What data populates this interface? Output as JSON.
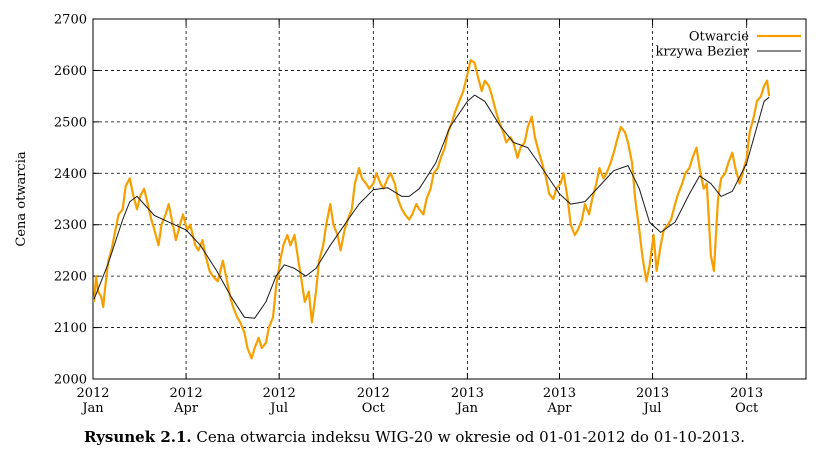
{
  "chart_data": {
    "type": "line",
    "title": "",
    "ylabel": "Cena otwarcia",
    "xlabel": "",
    "ylim": [
      2000,
      2700
    ],
    "xlim": [
      "2012-01-01",
      "2013-11-28"
    ],
    "grid": true,
    "legend_position": "top-right",
    "y_ticks": [
      2000,
      2100,
      2200,
      2300,
      2400,
      2500,
      2600,
      2700
    ],
    "x_ticks": [
      {
        "date": "2012-01-01",
        "label_top": "2012",
        "label_bottom": "Jan"
      },
      {
        "date": "2012-04-01",
        "label_top": "2012",
        "label_bottom": "Apr"
      },
      {
        "date": "2012-07-01",
        "label_top": "2012",
        "label_bottom": "Jul"
      },
      {
        "date": "2012-10-01",
        "label_top": "2012",
        "label_bottom": "Oct"
      },
      {
        "date": "2013-01-01",
        "label_top": "2013",
        "label_bottom": "Jan"
      },
      {
        "date": "2013-04-01",
        "label_top": "2013",
        "label_bottom": "Apr"
      },
      {
        "date": "2013-07-01",
        "label_top": "2013",
        "label_bottom": "Jul"
      },
      {
        "date": "2013-10-01",
        "label_top": "2013",
        "label_bottom": "Oct"
      }
    ],
    "series": [
      {
        "name": "Otwarcie",
        "color": "#f5a000",
        "points": [
          [
            "2012-01-02",
            2150
          ],
          [
            "2012-01-04",
            2200
          ],
          [
            "2012-01-06",
            2170
          ],
          [
            "2012-01-09",
            2160
          ],
          [
            "2012-01-11",
            2140
          ],
          [
            "2012-01-13",
            2180
          ],
          [
            "2012-01-16",
            2230
          ],
          [
            "2012-01-19",
            2250
          ],
          [
            "2012-01-23",
            2290
          ],
          [
            "2012-01-26",
            2320
          ],
          [
            "2012-01-30",
            2330
          ],
          [
            "2012-02-02",
            2375
          ],
          [
            "2012-02-06",
            2390
          ],
          [
            "2012-02-09",
            2360
          ],
          [
            "2012-02-13",
            2330
          ],
          [
            "2012-02-16",
            2355
          ],
          [
            "2012-02-20",
            2370
          ],
          [
            "2012-02-23",
            2345
          ],
          [
            "2012-02-27",
            2310
          ],
          [
            "2012-03-01",
            2290
          ],
          [
            "2012-03-05",
            2260
          ],
          [
            "2012-03-08",
            2300
          ],
          [
            "2012-03-12",
            2320
          ],
          [
            "2012-03-15",
            2340
          ],
          [
            "2012-03-19",
            2300
          ],
          [
            "2012-03-22",
            2270
          ],
          [
            "2012-03-26",
            2300
          ],
          [
            "2012-03-29",
            2320
          ],
          [
            "2012-04-02",
            2290
          ],
          [
            "2012-04-05",
            2300
          ],
          [
            "2012-04-10",
            2260
          ],
          [
            "2012-04-13",
            2250
          ],
          [
            "2012-04-17",
            2270
          ],
          [
            "2012-04-20",
            2240
          ],
          [
            "2012-04-24",
            2210
          ],
          [
            "2012-04-27",
            2200
          ],
          [
            "2012-05-02",
            2190
          ],
          [
            "2012-05-07",
            2230
          ],
          [
            "2012-05-10",
            2200
          ],
          [
            "2012-05-14",
            2160
          ],
          [
            "2012-05-17",
            2140
          ],
          [
            "2012-05-21",
            2120
          ],
          [
            "2012-05-24",
            2110
          ],
          [
            "2012-05-28",
            2090
          ],
          [
            "2012-05-31",
            2060
          ],
          [
            "2012-06-04",
            2040
          ],
          [
            "2012-06-07",
            2060
          ],
          [
            "2012-06-11",
            2080
          ],
          [
            "2012-06-14",
            2060
          ],
          [
            "2012-06-18",
            2070
          ],
          [
            "2012-06-21",
            2100
          ],
          [
            "2012-06-25",
            2120
          ],
          [
            "2012-06-28",
            2180
          ],
          [
            "2012-07-02",
            2230
          ],
          [
            "2012-07-05",
            2260
          ],
          [
            "2012-07-09",
            2280
          ],
          [
            "2012-07-12",
            2260
          ],
          [
            "2012-07-16",
            2280
          ],
          [
            "2012-07-19",
            2240
          ],
          [
            "2012-07-23",
            2190
          ],
          [
            "2012-07-26",
            2150
          ],
          [
            "2012-07-30",
            2170
          ],
          [
            "2012-08-02",
            2110
          ],
          [
            "2012-08-06",
            2170
          ],
          [
            "2012-08-09",
            2230
          ],
          [
            "2012-08-13",
            2260
          ],
          [
            "2012-08-16",
            2300
          ],
          [
            "2012-08-20",
            2340
          ],
          [
            "2012-08-23",
            2300
          ],
          [
            "2012-08-27",
            2280
          ],
          [
            "2012-08-30",
            2250
          ],
          [
            "2012-09-03",
            2290
          ],
          [
            "2012-09-06",
            2310
          ],
          [
            "2012-09-10",
            2330
          ],
          [
            "2012-09-13",
            2380
          ],
          [
            "2012-09-17",
            2410
          ],
          [
            "2012-09-20",
            2390
          ],
          [
            "2012-09-24",
            2380
          ],
          [
            "2012-09-27",
            2370
          ],
          [
            "2012-10-01",
            2380
          ],
          [
            "2012-10-04",
            2400
          ],
          [
            "2012-10-08",
            2380
          ],
          [
            "2012-10-11",
            2370
          ],
          [
            "2012-10-15",
            2390
          ],
          [
            "2012-10-18",
            2400
          ],
          [
            "2012-10-22",
            2380
          ],
          [
            "2012-10-25",
            2350
          ],
          [
            "2012-10-29",
            2330
          ],
          [
            "2012-11-01",
            2320
          ],
          [
            "2012-11-05",
            2310
          ],
          [
            "2012-11-08",
            2320
          ],
          [
            "2012-11-12",
            2340
          ],
          [
            "2012-11-15",
            2330
          ],
          [
            "2012-11-19",
            2320
          ],
          [
            "2012-11-22",
            2350
          ],
          [
            "2012-11-26",
            2370
          ],
          [
            "2012-11-29",
            2400
          ],
          [
            "2012-12-03",
            2410
          ],
          [
            "2012-12-06",
            2430
          ],
          [
            "2012-12-10",
            2450
          ],
          [
            "2012-12-13",
            2480
          ],
          [
            "2012-12-17",
            2500
          ],
          [
            "2012-12-20",
            2520
          ],
          [
            "2012-12-24",
            2540
          ],
          [
            "2012-12-28",
            2560
          ],
          [
            "2013-01-02",
            2600
          ],
          [
            "2013-01-04",
            2620
          ],
          [
            "2013-01-08",
            2615
          ],
          [
            "2013-01-11",
            2590
          ],
          [
            "2013-01-15",
            2560
          ],
          [
            "2013-01-18",
            2580
          ],
          [
            "2013-01-22",
            2570
          ],
          [
            "2013-01-25",
            2550
          ],
          [
            "2013-01-29",
            2520
          ],
          [
            "2013-02-01",
            2500
          ],
          [
            "2013-02-05",
            2480
          ],
          [
            "2013-02-08",
            2460
          ],
          [
            "2013-02-12",
            2470
          ],
          [
            "2013-02-15",
            2460
          ],
          [
            "2013-02-19",
            2430
          ],
          [
            "2013-02-22",
            2450
          ],
          [
            "2013-02-26",
            2460
          ],
          [
            "2013-03-01",
            2490
          ],
          [
            "2013-03-05",
            2510
          ],
          [
            "2013-03-08",
            2470
          ],
          [
            "2013-03-12",
            2440
          ],
          [
            "2013-03-15",
            2420
          ],
          [
            "2013-03-19",
            2390
          ],
          [
            "2013-03-22",
            2360
          ],
          [
            "2013-03-26",
            2350
          ],
          [
            "2013-03-29",
            2370
          ],
          [
            "2013-04-02",
            2380
          ],
          [
            "2013-04-05",
            2400
          ],
          [
            "2013-04-09",
            2350
          ],
          [
            "2013-04-12",
            2300
          ],
          [
            "2013-04-16",
            2280
          ],
          [
            "2013-04-19",
            2290
          ],
          [
            "2013-04-23",
            2310
          ],
          [
            "2013-04-26",
            2340
          ],
          [
            "2013-04-30",
            2320
          ],
          [
            "2013-05-03",
            2350
          ],
          [
            "2013-05-07",
            2380
          ],
          [
            "2013-05-10",
            2410
          ],
          [
            "2013-05-14",
            2390
          ],
          [
            "2013-05-17",
            2400
          ],
          [
            "2013-05-21",
            2420
          ],
          [
            "2013-05-24",
            2440
          ],
          [
            "2013-05-28",
            2470
          ],
          [
            "2013-05-31",
            2490
          ],
          [
            "2013-06-04",
            2480
          ],
          [
            "2013-06-07",
            2460
          ],
          [
            "2013-06-11",
            2420
          ],
          [
            "2013-06-14",
            2350
          ],
          [
            "2013-06-18",
            2290
          ],
          [
            "2013-06-21",
            2240
          ],
          [
            "2013-06-25",
            2190
          ],
          [
            "2013-06-28",
            2220
          ],
          [
            "2013-07-02",
            2280
          ],
          [
            "2013-07-05",
            2210
          ],
          [
            "2013-07-09",
            2260
          ],
          [
            "2013-07-12",
            2290
          ],
          [
            "2013-07-16",
            2300
          ],
          [
            "2013-07-19",
            2310
          ],
          [
            "2013-07-23",
            2340
          ],
          [
            "2013-07-26",
            2360
          ],
          [
            "2013-07-30",
            2380
          ],
          [
            "2013-08-02",
            2400
          ],
          [
            "2013-08-06",
            2410
          ],
          [
            "2013-08-09",
            2430
          ],
          [
            "2013-08-13",
            2450
          ],
          [
            "2013-08-16",
            2410
          ],
          [
            "2013-08-20",
            2370
          ],
          [
            "2013-08-23",
            2380
          ],
          [
            "2013-08-27",
            2240
          ],
          [
            "2013-08-30",
            2210
          ],
          [
            "2013-09-03",
            2350
          ],
          [
            "2013-09-06",
            2390
          ],
          [
            "2013-09-10",
            2400
          ],
          [
            "2013-09-13",
            2420
          ],
          [
            "2013-09-17",
            2440
          ],
          [
            "2013-09-20",
            2410
          ],
          [
            "2013-09-24",
            2380
          ],
          [
            "2013-09-27",
            2400
          ],
          [
            "2013-10-01",
            2430
          ],
          [
            "2013-10-04",
            2480
          ],
          [
            "2013-10-08",
            2510
          ],
          [
            "2013-10-11",
            2540
          ],
          [
            "2013-10-15",
            2550
          ],
          [
            "2013-10-18",
            2570
          ],
          [
            "2013-10-21",
            2580
          ],
          [
            "2013-10-23",
            2550
          ]
        ]
      },
      {
        "name": "krzywa Bezier",
        "color": "#1a1a1a",
        "points": [
          [
            "2012-01-02",
            2155
          ],
          [
            "2012-01-16",
            2225
          ],
          [
            "2012-01-30",
            2310
          ],
          [
            "2012-02-06",
            2345
          ],
          [
            "2012-02-13",
            2355
          ],
          [
            "2012-02-20",
            2340
          ],
          [
            "2012-03-01",
            2318
          ],
          [
            "2012-03-15",
            2305
          ],
          [
            "2012-04-01",
            2290
          ],
          [
            "2012-04-15",
            2260
          ],
          [
            "2012-05-01",
            2210
          ],
          [
            "2012-05-15",
            2160
          ],
          [
            "2012-05-28",
            2120
          ],
          [
            "2012-06-07",
            2118
          ],
          [
            "2012-06-18",
            2150
          ],
          [
            "2012-06-28",
            2200
          ],
          [
            "2012-07-06",
            2222
          ],
          [
            "2012-07-16",
            2215
          ],
          [
            "2012-07-27",
            2200
          ],
          [
            "2012-08-06",
            2215
          ],
          [
            "2012-08-20",
            2260
          ],
          [
            "2012-09-03",
            2300
          ],
          [
            "2012-09-17",
            2340
          ],
          [
            "2012-10-01",
            2368
          ],
          [
            "2012-10-15",
            2372
          ],
          [
            "2012-10-29",
            2355
          ],
          [
            "2012-11-05",
            2355
          ],
          [
            "2012-11-15",
            2370
          ],
          [
            "2012-12-01",
            2420
          ],
          [
            "2012-12-15",
            2490
          ],
          [
            "2013-01-01",
            2540
          ],
          [
            "2013-01-08",
            2552
          ],
          [
            "2013-01-18",
            2540
          ],
          [
            "2013-02-01",
            2495
          ],
          [
            "2013-02-15",
            2460
          ],
          [
            "2013-03-01",
            2450
          ],
          [
            "2013-03-15",
            2410
          ],
          [
            "2013-04-01",
            2360
          ],
          [
            "2013-04-12",
            2340
          ],
          [
            "2013-04-26",
            2345
          ],
          [
            "2013-05-10",
            2375
          ],
          [
            "2013-05-24",
            2405
          ],
          [
            "2013-06-07",
            2415
          ],
          [
            "2013-06-18",
            2370
          ],
          [
            "2013-06-28",
            2305
          ],
          [
            "2013-07-09",
            2285
          ],
          [
            "2013-07-23",
            2305
          ],
          [
            "2013-08-06",
            2360
          ],
          [
            "2013-08-16",
            2395
          ],
          [
            "2013-08-27",
            2380
          ],
          [
            "2013-09-06",
            2355
          ],
          [
            "2013-09-17",
            2365
          ],
          [
            "2013-10-01",
            2420
          ],
          [
            "2013-10-11",
            2490
          ],
          [
            "2013-10-18",
            2540
          ],
          [
            "2013-10-23",
            2548
          ]
        ]
      }
    ]
  },
  "caption": {
    "label": "Rysunek 2.1.",
    "text": " Cena otwarcia indeksu WIG-20 w okresie od 01-01-2012 do 01-10-2013."
  }
}
